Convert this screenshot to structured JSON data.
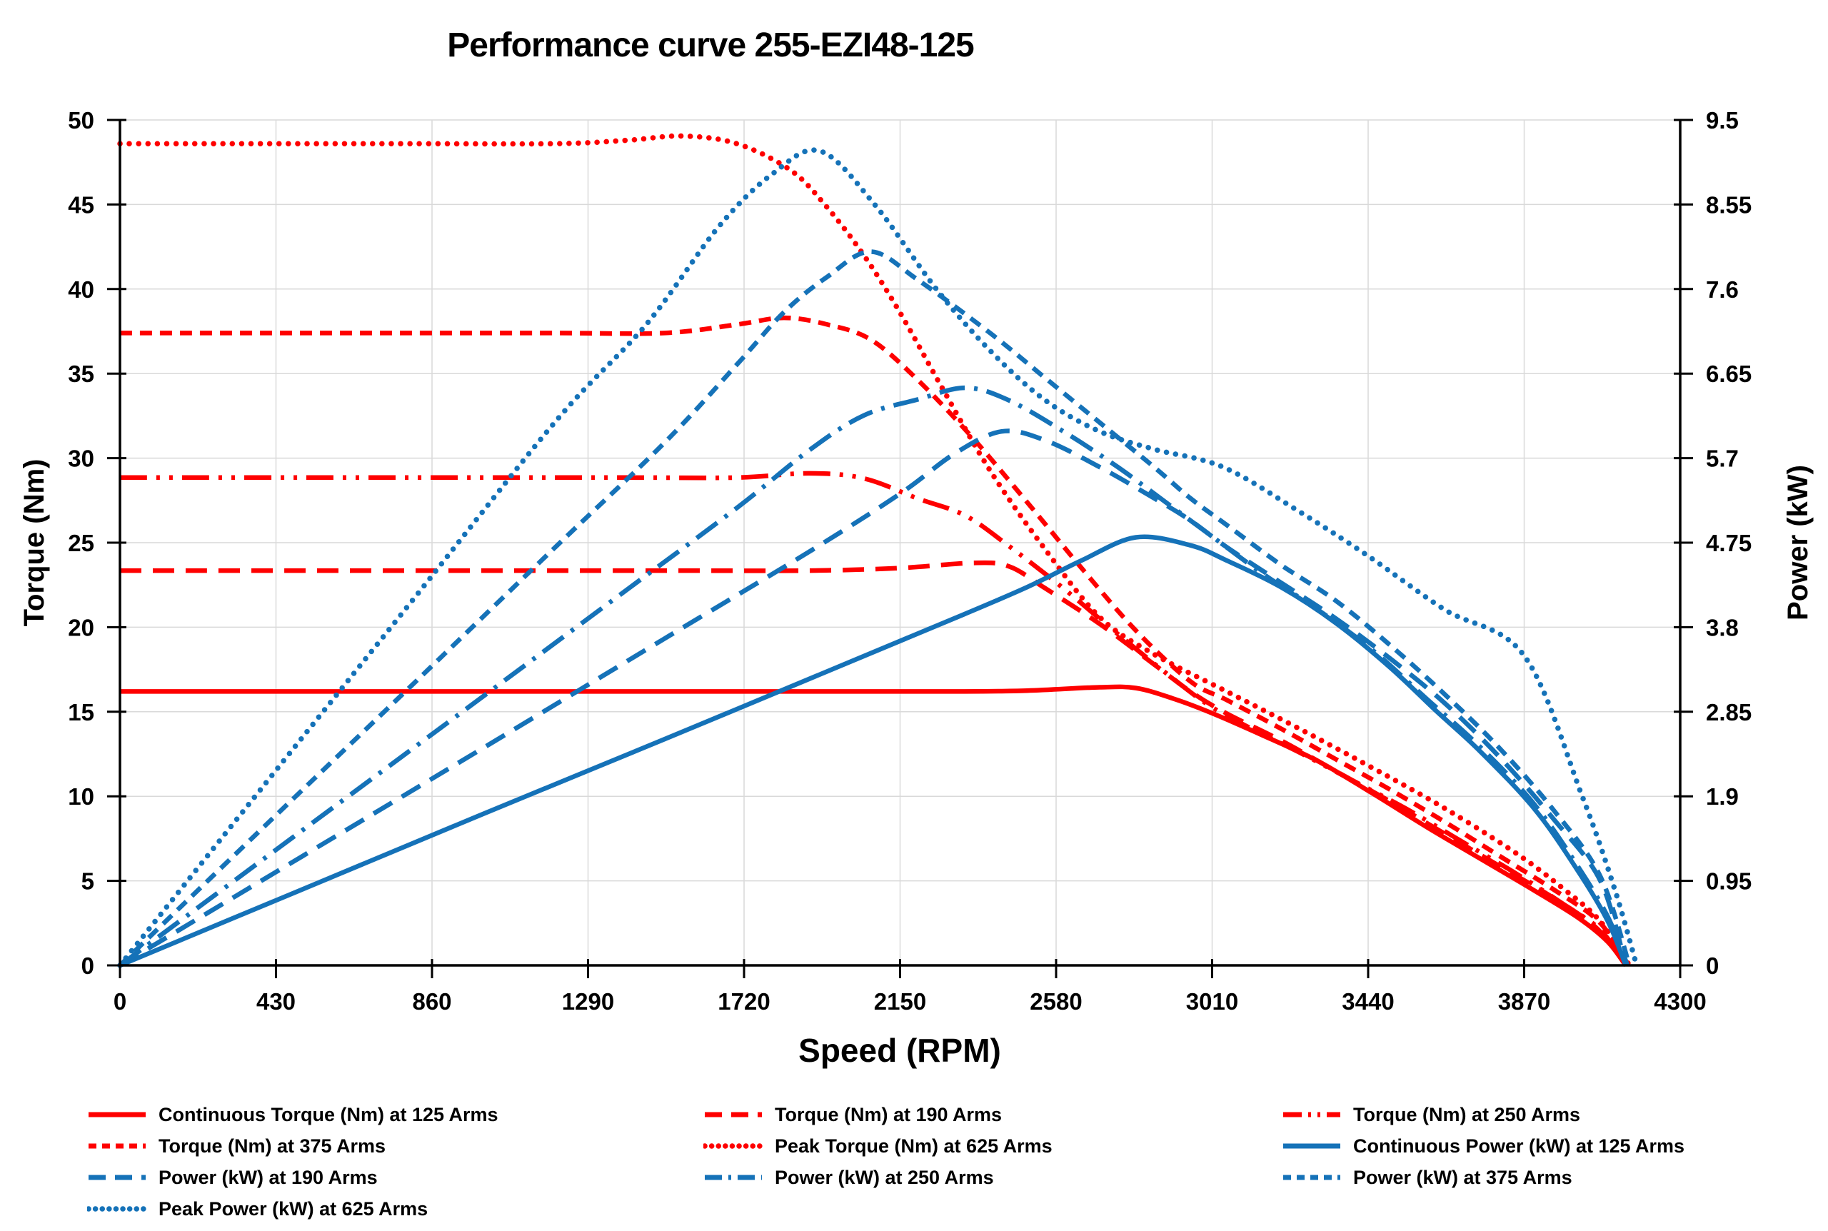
{
  "title": "Performance curve 255-EZI48-125",
  "colors": {
    "red": "#fe0000",
    "blue": "#1572b8",
    "grid": "#d9d9d9",
    "axis": "#000000",
    "text": "#000000"
  },
  "chart_data": {
    "type": "line",
    "title": "Performance curve 255-EZI48-125",
    "xlabel": "Speed (RPM)",
    "ylabel_left": "Torque (Nm)",
    "ylabel_right": "Power (kW)",
    "grid": true,
    "legend_position": "bottom",
    "x_axis": {
      "min": 0,
      "max": 4300,
      "ticks": [
        0,
        430,
        860,
        1290,
        1720,
        2150,
        2580,
        3010,
        3440,
        3870,
        4300
      ]
    },
    "y_left": {
      "min": 0,
      "max": 50,
      "ticks": [
        0,
        5,
        10,
        15,
        20,
        25,
        30,
        35,
        40,
        45,
        50
      ]
    },
    "y_right": {
      "min": 0,
      "max": 9.5,
      "tick_labels": [
        "0",
        "0.95",
        "1.9",
        "2.85",
        "3.8",
        "4.75",
        "5.7",
        "6.65",
        "7.6",
        "8.55",
        "9.5"
      ]
    },
    "series": [
      {
        "id": "torque-125",
        "name": "Continuous Torque (Nm) at 125 Arms",
        "color": "red",
        "style": "solid",
        "axis": "left",
        "points": [
          [
            0,
            16.2
          ],
          [
            500,
            16.2
          ],
          [
            1000,
            16.2
          ],
          [
            1500,
            16.2
          ],
          [
            2000,
            16.2
          ],
          [
            2300,
            16.2
          ],
          [
            2500,
            16.25
          ],
          [
            2700,
            16.45
          ],
          [
            2800,
            16.4
          ],
          [
            2900,
            15.8
          ],
          [
            3000,
            15.0
          ],
          [
            3150,
            13.6
          ],
          [
            3300,
            12.1
          ],
          [
            3450,
            10.2
          ],
          [
            3600,
            8.2
          ],
          [
            3750,
            6.3
          ],
          [
            3900,
            4.4
          ],
          [
            4020,
            2.8
          ],
          [
            4100,
            1.4
          ],
          [
            4150,
            0
          ]
        ]
      },
      {
        "id": "torque-190",
        "name": "Torque (Nm) at 190 Arms",
        "color": "red",
        "style": "long-dash",
        "axis": "left",
        "points": [
          [
            0,
            23.35
          ],
          [
            500,
            23.35
          ],
          [
            1000,
            23.35
          ],
          [
            1500,
            23.35
          ],
          [
            1900,
            23.35
          ],
          [
            2150,
            23.5
          ],
          [
            2350,
            23.8
          ],
          [
            2450,
            23.6
          ],
          [
            2550,
            22.3
          ],
          [
            2700,
            20.2
          ],
          [
            2850,
            17.8
          ],
          [
            2950,
            16.2
          ],
          [
            3050,
            14.9
          ],
          [
            3200,
            13.3
          ],
          [
            3350,
            11.5
          ],
          [
            3500,
            9.7
          ],
          [
            3650,
            7.8
          ],
          [
            3800,
            5.9
          ],
          [
            3950,
            4.0
          ],
          [
            4070,
            2.2
          ],
          [
            4150,
            0
          ]
        ]
      },
      {
        "id": "torque-250",
        "name": "Torque (Nm) at 250 Arms",
        "color": "red",
        "style": "dash-dot-dot",
        "axis": "left",
        "points": [
          [
            0,
            28.85
          ],
          [
            500,
            28.85
          ],
          [
            1000,
            28.85
          ],
          [
            1400,
            28.85
          ],
          [
            1700,
            28.85
          ],
          [
            1900,
            29.1
          ],
          [
            2050,
            28.8
          ],
          [
            2200,
            27.6
          ],
          [
            2330,
            26.6
          ],
          [
            2450,
            24.8
          ],
          [
            2600,
            22.3
          ],
          [
            2750,
            19.6
          ],
          [
            2900,
            17.0
          ],
          [
            3000,
            15.4
          ],
          [
            3100,
            14.2
          ],
          [
            3250,
            12.6
          ],
          [
            3400,
            10.9
          ],
          [
            3550,
            9.2
          ],
          [
            3700,
            7.3
          ],
          [
            3850,
            5.4
          ],
          [
            3980,
            3.6
          ],
          [
            4080,
            2.1
          ],
          [
            4150,
            0
          ]
        ]
      },
      {
        "id": "torque-375",
        "name": "Torque (Nm) at 375 Arms",
        "color": "red",
        "style": "short-dash",
        "axis": "left",
        "points": [
          [
            0,
            37.4
          ],
          [
            400,
            37.4
          ],
          [
            800,
            37.4
          ],
          [
            1200,
            37.4
          ],
          [
            1500,
            37.4
          ],
          [
            1700,
            37.9
          ],
          [
            1830,
            38.3
          ],
          [
            1950,
            37.9
          ],
          [
            2070,
            37.0
          ],
          [
            2200,
            34.6
          ],
          [
            2350,
            31.2
          ],
          [
            2500,
            27.4
          ],
          [
            2650,
            23.5
          ],
          [
            2800,
            19.8
          ],
          [
            2950,
            16.8
          ],
          [
            3050,
            15.7
          ],
          [
            3200,
            14.0
          ],
          [
            3350,
            12.2
          ],
          [
            3500,
            10.4
          ],
          [
            3650,
            8.5
          ],
          [
            3800,
            6.5
          ],
          [
            3950,
            4.5
          ],
          [
            4080,
            2.5
          ],
          [
            4150,
            0
          ]
        ]
      },
      {
        "id": "torque-625",
        "name": "Peak Torque (Nm) at 625 Arms",
        "color": "red",
        "style": "dot",
        "axis": "left",
        "points": [
          [
            0,
            48.6
          ],
          [
            400,
            48.6
          ],
          [
            800,
            48.6
          ],
          [
            1200,
            48.6
          ],
          [
            1400,
            48.8
          ],
          [
            1550,
            49.05
          ],
          [
            1700,
            48.6
          ],
          [
            1850,
            47.0
          ],
          [
            1950,
            44.8
          ],
          [
            2050,
            42.0
          ],
          [
            2150,
            38.6
          ],
          [
            2270,
            34.0
          ],
          [
            2400,
            29.2
          ],
          [
            2550,
            24.6
          ],
          [
            2700,
            20.6
          ],
          [
            2850,
            18.4
          ],
          [
            3050,
            16.2
          ],
          [
            3250,
            14.0
          ],
          [
            3450,
            11.7
          ],
          [
            3650,
            9.3
          ],
          [
            3850,
            6.6
          ],
          [
            3980,
            4.5
          ],
          [
            4080,
            2.6
          ],
          [
            4160,
            0
          ]
        ]
      },
      {
        "id": "power-125",
        "name": "Continuous Power (kW) at 125 Arms",
        "color": "blue",
        "style": "solid",
        "axis": "right",
        "points": [
          [
            0,
            0
          ],
          [
            500,
            0.85
          ],
          [
            1000,
            1.7
          ],
          [
            1500,
            2.54
          ],
          [
            2000,
            3.39
          ],
          [
            2300,
            3.9
          ],
          [
            2500,
            4.25
          ],
          [
            2650,
            4.55
          ],
          [
            2800,
            4.81
          ],
          [
            2950,
            4.72
          ],
          [
            3050,
            4.55
          ],
          [
            3200,
            4.25
          ],
          [
            3350,
            3.85
          ],
          [
            3500,
            3.35
          ],
          [
            3630,
            2.85
          ],
          [
            3750,
            2.4
          ],
          [
            3900,
            1.75
          ],
          [
            4020,
            1.05
          ],
          [
            4100,
            0.5
          ],
          [
            4150,
            0
          ]
        ]
      },
      {
        "id": "power-190",
        "name": "Power (kW) at 190 Arms",
        "color": "blue",
        "style": "long-dash",
        "axis": "right",
        "points": [
          [
            0,
            0
          ],
          [
            500,
            1.22
          ],
          [
            1000,
            2.44
          ],
          [
            1500,
            3.67
          ],
          [
            1900,
            4.65
          ],
          [
            2150,
            5.3
          ],
          [
            2300,
            5.75
          ],
          [
            2430,
            6.0
          ],
          [
            2550,
            5.9
          ],
          [
            2700,
            5.6
          ],
          [
            2850,
            5.25
          ],
          [
            2950,
            5.0
          ],
          [
            3050,
            4.7
          ],
          [
            3200,
            4.3
          ],
          [
            3350,
            3.9
          ],
          [
            3500,
            3.45
          ],
          [
            3650,
            2.95
          ],
          [
            3800,
            2.35
          ],
          [
            3950,
            1.65
          ],
          [
            4080,
            0.95
          ],
          [
            4150,
            0
          ]
        ]
      },
      {
        "id": "power-250",
        "name": "Power (kW) at 250 Arms",
        "color": "blue",
        "style": "dash-dot",
        "axis": "right",
        "points": [
          [
            0,
            0
          ],
          [
            500,
            1.51
          ],
          [
            1000,
            3.02
          ],
          [
            1400,
            4.23
          ],
          [
            1700,
            5.14
          ],
          [
            1900,
            5.79
          ],
          [
            2050,
            6.18
          ],
          [
            2200,
            6.36
          ],
          [
            2330,
            6.49
          ],
          [
            2450,
            6.35
          ],
          [
            2600,
            6.0
          ],
          [
            2750,
            5.6
          ],
          [
            2900,
            5.15
          ],
          [
            3000,
            4.85
          ],
          [
            3150,
            4.4
          ],
          [
            3300,
            4.0
          ],
          [
            3450,
            3.55
          ],
          [
            3600,
            3.0
          ],
          [
            3750,
            2.45
          ],
          [
            3900,
            1.8
          ],
          [
            4020,
            1.1
          ],
          [
            4100,
            0.55
          ],
          [
            4155,
            0
          ]
        ]
      },
      {
        "id": "power-375",
        "name": "Power (kW) at 375 Arms",
        "color": "blue",
        "style": "short-dash",
        "axis": "right",
        "points": [
          [
            0,
            0
          ],
          [
            400,
            1.57
          ],
          [
            800,
            3.13
          ],
          [
            1200,
            4.7
          ],
          [
            1500,
            5.87
          ],
          [
            1700,
            6.75
          ],
          [
            1830,
            7.34
          ],
          [
            1950,
            7.74
          ],
          [
            2070,
            8.02
          ],
          [
            2200,
            7.7
          ],
          [
            2400,
            7.1
          ],
          [
            2550,
            6.6
          ],
          [
            2700,
            6.1
          ],
          [
            2850,
            5.6
          ],
          [
            2950,
            5.25
          ],
          [
            3050,
            4.95
          ],
          [
            3200,
            4.5
          ],
          [
            3350,
            4.1
          ],
          [
            3500,
            3.6
          ],
          [
            3650,
            3.05
          ],
          [
            3800,
            2.45
          ],
          [
            3950,
            1.75
          ],
          [
            4080,
            1.0
          ],
          [
            4160,
            0
          ]
        ]
      },
      {
        "id": "power-625",
        "name": "Peak Power (kW) at 625 Arms",
        "color": "blue",
        "style": "dot",
        "axis": "right",
        "points": [
          [
            0,
            0
          ],
          [
            400,
            2.04
          ],
          [
            800,
            4.07
          ],
          [
            1200,
            6.11
          ],
          [
            1450,
            7.2
          ],
          [
            1650,
            8.3
          ],
          [
            1800,
            8.9
          ],
          [
            1930,
            9.15
          ],
          [
            2080,
            8.55
          ],
          [
            2250,
            7.6
          ],
          [
            2400,
            6.9
          ],
          [
            2550,
            6.35
          ],
          [
            2700,
            6.0
          ],
          [
            2850,
            5.8
          ],
          [
            3040,
            5.6
          ],
          [
            3250,
            5.1
          ],
          [
            3440,
            4.6
          ],
          [
            3650,
            4.0
          ],
          [
            3870,
            3.48
          ],
          [
            4030,
            1.9
          ],
          [
            4120,
            0.85
          ],
          [
            4180,
            0
          ]
        ]
      }
    ]
  },
  "legend": {
    "rows": [
      [
        0,
        1,
        2
      ],
      [
        3,
        4,
        5
      ],
      [
        6,
        7,
        8
      ],
      [
        9
      ]
    ]
  }
}
